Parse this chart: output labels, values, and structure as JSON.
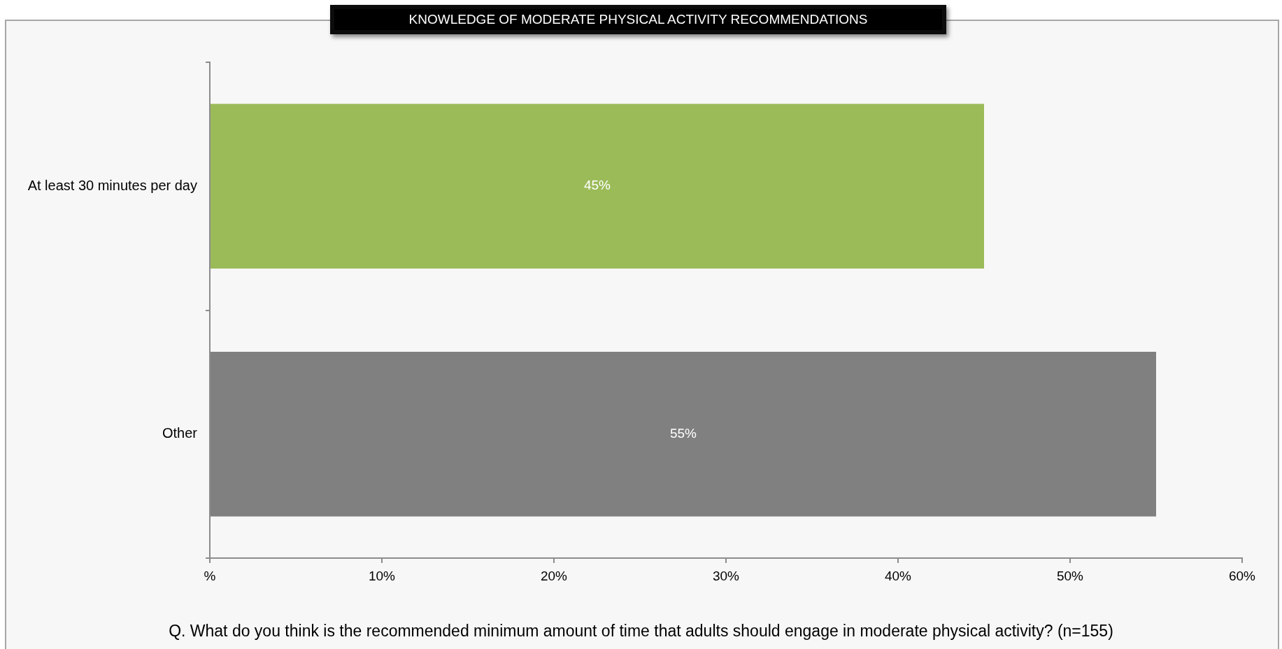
{
  "chart_data": {
    "type": "bar",
    "orientation": "horizontal",
    "title": "KNOWLEDGE OF MODERATE PHYSICAL ACTIVITY RECOMMENDATIONS",
    "categories": [
      "At least 30 minutes per day",
      "Other"
    ],
    "values": [
      45,
      55
    ],
    "colors": [
      "#9bbb59",
      "#808080"
    ],
    "value_labels": [
      "45%",
      "55%"
    ],
    "xlim": [
      0,
      60
    ],
    "xticks": [
      {
        "value": 0,
        "label": "%"
      },
      {
        "value": 10,
        "label": "10%"
      },
      {
        "value": 20,
        "label": "20%"
      },
      {
        "value": 30,
        "label": "30%"
      },
      {
        "value": 40,
        "label": "40%"
      },
      {
        "value": 50,
        "label": "50%"
      },
      {
        "value": 60,
        "label": "60%"
      }
    ],
    "annotations": [
      "Q. What do you think is the recommended minimum amount of time that adults should engage in moderate physical activity? (n=155)"
    ]
  }
}
